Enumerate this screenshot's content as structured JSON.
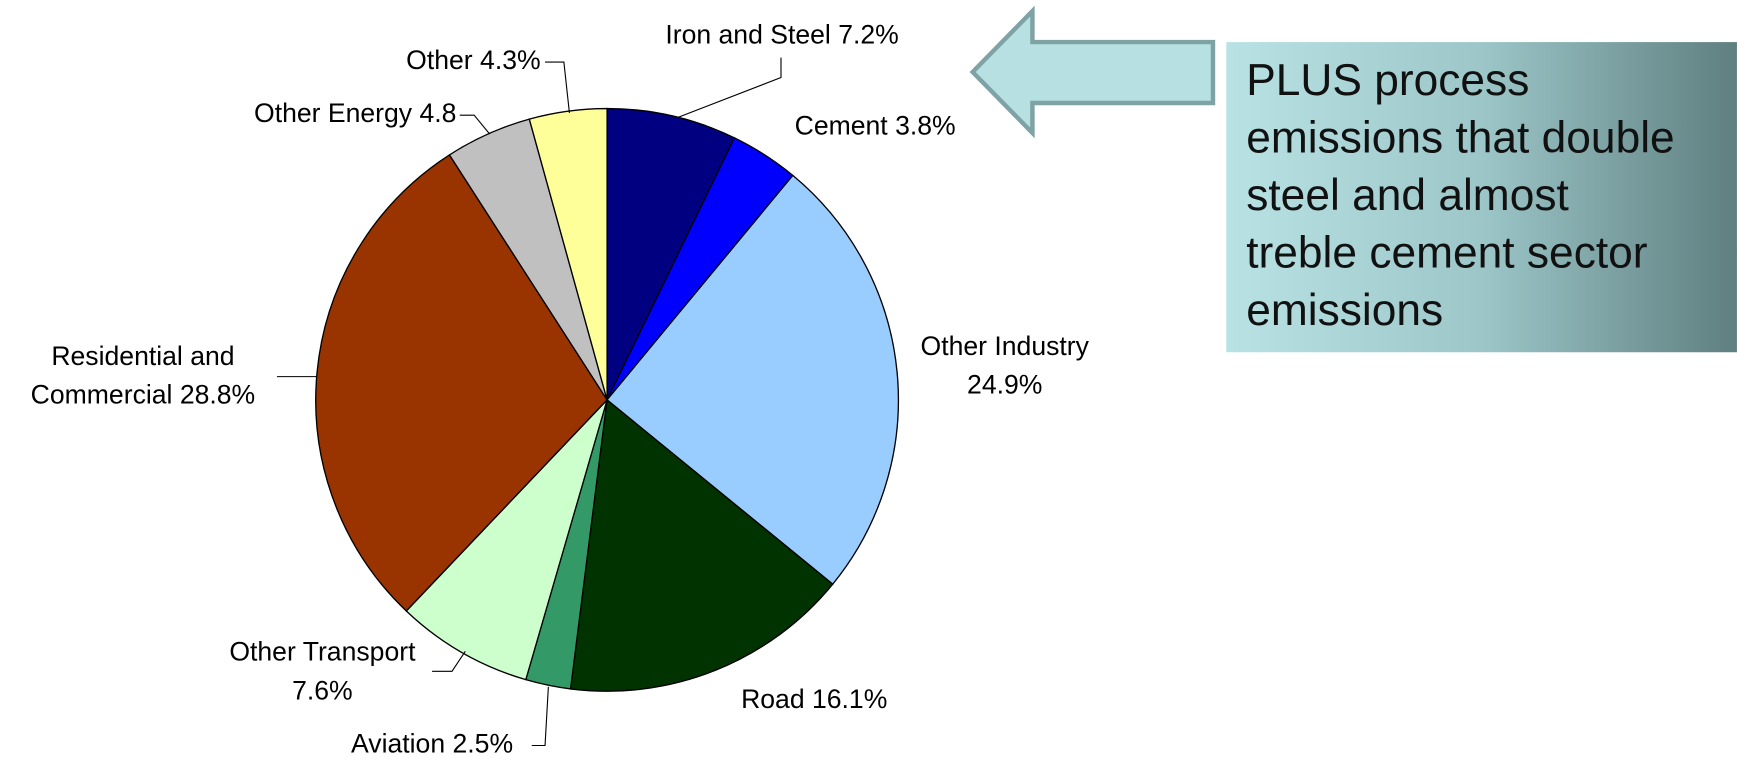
{
  "chart_data": {
    "type": "pie",
    "values": [
      7.2,
      3.8,
      24.9,
      16.1,
      2.5,
      7.6,
      28.8,
      4.8,
      4.3
    ],
    "labels": [
      [
        "Iron and Steel 7.2%"
      ],
      [
        "Cement 3.8%"
      ],
      [
        "Other Industry",
        "24.9%"
      ],
      [
        "Road 16.1%"
      ],
      [
        "Aviation 2.5%"
      ],
      [
        "Other Transport",
        "7.6%"
      ],
      [
        "Residential and",
        "Commercial 28.8%"
      ],
      [
        "Other Energy 4.8"
      ],
      [
        "Other 4.3%"
      ]
    ],
    "colors": [
      "#000080",
      "#0000ff",
      "#99ccff",
      "#003300",
      "#339966",
      "#ccffcc",
      "#993300",
      "#c0c0c0",
      "#ffff99"
    ],
    "annotation": [
      "PLUS process",
      "emissions that double",
      "steel and almost",
      "treble cement sector",
      "emissions"
    ]
  }
}
